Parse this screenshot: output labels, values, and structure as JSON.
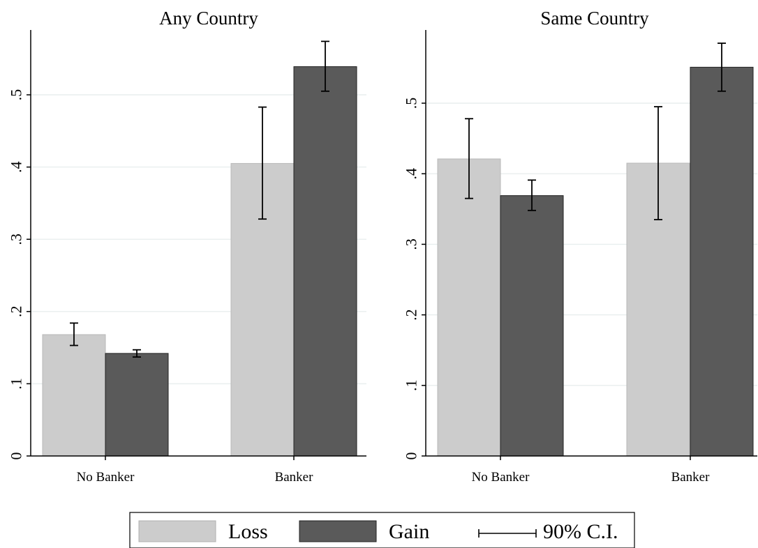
{
  "chart_data": [
    {
      "type": "bar",
      "title": "Any Country",
      "xlabel": "",
      "ylabel": "",
      "categories": [
        "No Banker",
        "Banker"
      ],
      "ylim": [
        0,
        0.58
      ],
      "yticks": [
        0,
        0.1,
        0.2,
        0.3,
        0.4,
        0.5
      ],
      "ytick_labels": [
        "0",
        ".1",
        ".2",
        ".3",
        ".4",
        ".5"
      ],
      "grid": true,
      "series": [
        {
          "name": "Loss",
          "values": [
            0.168,
            0.405
          ],
          "ci_low": [
            0.153,
            0.328
          ],
          "ci_high": [
            0.184,
            0.483
          ]
        },
        {
          "name": "Gain",
          "values": [
            0.142,
            0.539
          ],
          "ci_low": [
            0.137,
            0.505
          ],
          "ci_high": [
            0.147,
            0.574
          ]
        }
      ]
    },
    {
      "type": "bar",
      "title": "Same Country",
      "xlabel": "",
      "ylabel": "",
      "categories": [
        "No Banker",
        "Banker"
      ],
      "ylim": [
        0,
        0.58
      ],
      "yticks": [
        0,
        0.1,
        0.2,
        0.3,
        0.4,
        0.5
      ],
      "ytick_labels": [
        "0",
        ".1",
        ".2",
        ".3",
        ".4",
        ".5"
      ],
      "grid": true,
      "series": [
        {
          "name": "Loss",
          "values": [
            0.421,
            0.415
          ],
          "ci_low": [
            0.365,
            0.335
          ],
          "ci_high": [
            0.478,
            0.495
          ]
        },
        {
          "name": "Gain",
          "values": [
            0.369,
            0.551
          ],
          "ci_low": [
            0.348,
            0.517
          ],
          "ci_high": [
            0.391,
            0.585
          ]
        }
      ]
    }
  ],
  "legend": {
    "placement": "bottom",
    "items": [
      {
        "label": "Loss",
        "color": "#cccccc"
      },
      {
        "label": "Gain",
        "color": "#5a5a5a"
      },
      {
        "label": "90% C.I.",
        "color": "#000000"
      }
    ]
  },
  "colors": {
    "loss": "#cccccc",
    "gain": "#5a5a5a",
    "grid": "#e8eeee",
    "axis": "#000000"
  }
}
